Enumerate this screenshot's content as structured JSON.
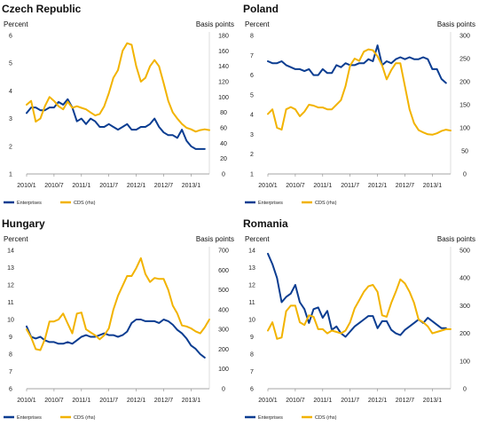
{
  "chart_data": [
    {
      "type": "line",
      "title": "Czech Republic",
      "ylabel_left": "Percent",
      "ylabel_right": "Basis points",
      "x_ticks": [
        "2010/1",
        "2010/7",
        "2011/1",
        "2011/7",
        "2012/1",
        "2012/7",
        "2013/1"
      ],
      "y_left": {
        "min": 1,
        "max": 6,
        "ticks": [
          "1",
          "2",
          "3",
          "4",
          "5",
          "6"
        ]
      },
      "y_right": {
        "min": 0,
        "max": 180,
        "ticks": [
          "0",
          "20",
          "40",
          "60",
          "80",
          "100",
          "120",
          "140",
          "160",
          "180"
        ]
      },
      "series": [
        {
          "name": "Enterprises",
          "axis": "left",
          "color": "#0b3d91",
          "x": [
            0,
            1,
            2,
            3,
            4,
            5,
            6,
            7,
            8,
            9,
            10,
            11,
            12,
            13,
            14,
            15,
            16,
            17,
            18,
            19,
            20,
            21,
            22,
            23,
            24,
            25,
            26,
            27,
            28,
            29,
            30,
            31,
            32,
            33,
            34,
            35,
            36,
            37,
            38,
            39
          ],
          "values": [
            3.2,
            3.4,
            3.4,
            3.3,
            3.3,
            3.4,
            3.4,
            3.6,
            3.5,
            3.7,
            3.4,
            2.9,
            3.0,
            2.8,
            3.0,
            2.9,
            2.7,
            2.7,
            2.8,
            2.7,
            2.6,
            2.7,
            2.8,
            2.6,
            2.6,
            2.7,
            2.7,
            2.8,
            3.0,
            2.7,
            2.5,
            2.4,
            2.4,
            2.3,
            2.6,
            2.2,
            2.0,
            1.9,
            1.9,
            1.9
          ]
        },
        {
          "name": "CDS (rhs)",
          "axis": "right",
          "color": "#f2b300",
          "x": [
            0,
            1,
            2,
            3,
            4,
            5,
            6,
            7,
            8,
            9,
            10,
            11,
            12,
            13,
            14,
            15,
            16,
            17,
            18,
            19,
            20,
            21,
            22,
            23,
            24,
            25,
            26,
            27,
            28,
            29,
            30,
            31,
            32,
            33,
            34,
            35,
            36,
            37,
            38,
            39,
            40
          ],
          "values": [
            90,
            95,
            68,
            72,
            88,
            100,
            95,
            88,
            84,
            94,
            86,
            88,
            86,
            84,
            80,
            76,
            78,
            88,
            105,
            125,
            135,
            160,
            170,
            168,
            140,
            120,
            125,
            140,
            148,
            140,
            118,
            95,
            80,
            72,
            65,
            60,
            58,
            55,
            57,
            58,
            57
          ]
        }
      ]
    },
    {
      "type": "line",
      "title": "Poland",
      "ylabel_left": "Percent",
      "ylabel_right": "Basis points",
      "x_ticks": [
        "2010/1",
        "2010/7",
        "2011/1",
        "2011/7",
        "2012/1",
        "2012/7",
        "2013/1"
      ],
      "y_left": {
        "min": 1,
        "max": 8,
        "ticks": [
          "1",
          "2",
          "3",
          "4",
          "5",
          "6",
          "7",
          "8"
        ]
      },
      "y_right": {
        "min": 0,
        "max": 300,
        "ticks": [
          "0",
          "50",
          "100",
          "150",
          "200",
          "250",
          "300"
        ]
      },
      "series": [
        {
          "name": "Enterprises",
          "axis": "left",
          "color": "#0b3d91",
          "x": [
            0,
            1,
            2,
            3,
            4,
            5,
            6,
            7,
            8,
            9,
            10,
            11,
            12,
            13,
            14,
            15,
            16,
            17,
            18,
            19,
            20,
            21,
            22,
            23,
            24,
            25,
            26,
            27,
            28,
            29,
            30,
            31,
            32,
            33,
            34,
            35,
            36,
            37,
            38,
            39
          ],
          "values": [
            6.7,
            6.6,
            6.6,
            6.7,
            6.5,
            6.4,
            6.3,
            6.3,
            6.2,
            6.3,
            6.0,
            6.0,
            6.3,
            6.1,
            6.1,
            6.5,
            6.4,
            6.6,
            6.5,
            6.5,
            6.6,
            6.6,
            6.8,
            6.7,
            7.5,
            6.5,
            6.7,
            6.6,
            6.8,
            6.9,
            6.8,
            6.9,
            6.8,
            6.8,
            6.9,
            6.8,
            6.3,
            6.3,
            5.8,
            5.6
          ]
        },
        {
          "name": "CDS (rhs)",
          "axis": "right",
          "color": "#f2b300",
          "x": [
            0,
            1,
            2,
            3,
            4,
            5,
            6,
            7,
            8,
            9,
            10,
            11,
            12,
            13,
            14,
            15,
            16,
            17,
            18,
            19,
            20,
            21,
            22,
            23,
            24,
            25,
            26,
            27,
            28,
            29,
            30,
            31,
            32,
            33,
            34,
            35,
            36,
            37,
            38,
            39,
            40
          ],
          "values": [
            130,
            140,
            100,
            96,
            140,
            145,
            140,
            125,
            135,
            150,
            148,
            144,
            144,
            140,
            140,
            150,
            160,
            190,
            235,
            250,
            245,
            265,
            270,
            268,
            255,
            235,
            205,
            225,
            240,
            240,
            190,
            140,
            110,
            95,
            90,
            86,
            85,
            88,
            93,
            96,
            94
          ]
        }
      ]
    },
    {
      "type": "line",
      "title": "Hungary",
      "ylabel_left": "Percent",
      "ylabel_right": "Basis points",
      "x_ticks": [
        "2010/1",
        "2010/7",
        "2011/1",
        "2011/7",
        "2012/1",
        "2012/7",
        "2013/1"
      ],
      "y_left": {
        "min": 6,
        "max": 14,
        "ticks": [
          "6",
          "7",
          "8",
          "9",
          "10",
          "11",
          "12",
          "13",
          "14"
        ]
      },
      "y_right": {
        "min": 0,
        "max": 700,
        "ticks": [
          "0",
          "100",
          "200",
          "300",
          "400",
          "500",
          "600",
          "700"
        ]
      },
      "series": [
        {
          "name": "Enterprises",
          "axis": "left",
          "color": "#0b3d91",
          "x": [
            0,
            1,
            2,
            3,
            4,
            5,
            6,
            7,
            8,
            9,
            10,
            11,
            12,
            13,
            14,
            15,
            16,
            17,
            18,
            19,
            20,
            21,
            22,
            23,
            24,
            25,
            26,
            27,
            28,
            29,
            30,
            31,
            32,
            33,
            34,
            35,
            36,
            37,
            38,
            39
          ],
          "values": [
            9.6,
            9.0,
            8.9,
            9.0,
            8.8,
            8.7,
            8.7,
            8.6,
            8.6,
            8.7,
            8.6,
            8.8,
            9.0,
            9.1,
            9.0,
            9.0,
            9.1,
            9.2,
            9.1,
            9.1,
            9.0,
            9.1,
            9.3,
            9.8,
            10.0,
            10.0,
            9.9,
            9.9,
            9.9,
            9.8,
            10.0,
            9.9,
            9.7,
            9.4,
            9.2,
            8.9,
            8.5,
            8.3,
            8.0,
            7.8
          ]
        },
        {
          "name": "CDS (rhs)",
          "axis": "right",
          "color": "#f2b300",
          "x": [
            0,
            1,
            2,
            3,
            4,
            5,
            6,
            7,
            8,
            9,
            10,
            11,
            12,
            13,
            14,
            15,
            16,
            17,
            18,
            19,
            20,
            21,
            22,
            23,
            24,
            25,
            26,
            27,
            28,
            29,
            30,
            31,
            32,
            33,
            34,
            35,
            36,
            37,
            38,
            39,
            40
          ],
          "values": [
            300,
            260,
            200,
            195,
            250,
            340,
            340,
            350,
            380,
            330,
            280,
            380,
            385,
            300,
            285,
            270,
            250,
            270,
            305,
            400,
            470,
            520,
            570,
            570,
            610,
            660,
            580,
            540,
            560,
            555,
            555,
            500,
            420,
            380,
            320,
            315,
            305,
            290,
            280,
            310,
            350
          ]
        }
      ]
    },
    {
      "type": "line",
      "title": "Romania",
      "ylabel_left": "Percent",
      "ylabel_right": "Basis points",
      "x_ticks": [
        "2010/1",
        "2010/7",
        "2011/1",
        "2011/7",
        "2012/1",
        "2012/7",
        "2013/1"
      ],
      "y_left": {
        "min": 6,
        "max": 14,
        "ticks": [
          "6",
          "7",
          "8",
          "9",
          "10",
          "11",
          "12",
          "13",
          "14"
        ]
      },
      "y_right": {
        "min": 0,
        "max": 500,
        "ticks": [
          "0",
          "100",
          "200",
          "300",
          "400",
          "500"
        ]
      },
      "series": [
        {
          "name": "Enterprises",
          "axis": "left",
          "color": "#0b3d91",
          "x": [
            0,
            1,
            2,
            3,
            4,
            5,
            6,
            7,
            8,
            9,
            10,
            11,
            12,
            13,
            14,
            15,
            16,
            17,
            18,
            19,
            20,
            21,
            22,
            23,
            24,
            25,
            26,
            27,
            28,
            29,
            30,
            31,
            32,
            33,
            34,
            35,
            36,
            37,
            38,
            39
          ],
          "values": [
            13.8,
            13.2,
            12.4,
            11.0,
            11.3,
            11.5,
            12.0,
            11.0,
            10.6,
            9.8,
            10.6,
            10.7,
            10.1,
            10.5,
            9.4,
            9.6,
            9.2,
            9.0,
            9.3,
            9.6,
            9.8,
            10.0,
            10.2,
            10.2,
            9.5,
            9.9,
            9.9,
            9.4,
            9.2,
            9.1,
            9.4,
            9.6,
            9.8,
            10.0,
            9.8,
            10.1,
            9.9,
            9.7,
            9.5,
            9.5
          ]
        },
        {
          "name": "CDS (rhs)",
          "axis": "right",
          "color": "#f2b300",
          "x": [
            0,
            1,
            2,
            3,
            4,
            5,
            6,
            7,
            8,
            9,
            10,
            11,
            12,
            13,
            14,
            15,
            16,
            17,
            18,
            19,
            20,
            21,
            22,
            23,
            24,
            25,
            26,
            27,
            28,
            29,
            30,
            31,
            32,
            33,
            34,
            35,
            36,
            37,
            38,
            39,
            40
          ],
          "values": [
            210,
            240,
            180,
            185,
            280,
            300,
            300,
            240,
            230,
            265,
            260,
            215,
            215,
            200,
            210,
            205,
            200,
            210,
            240,
            290,
            320,
            350,
            370,
            375,
            350,
            265,
            260,
            310,
            350,
            395,
            380,
            350,
            310,
            250,
            240,
            225,
            200,
            205,
            210,
            215,
            215
          ]
        }
      ]
    }
  ],
  "legend": {
    "enterprises": "Enterprises",
    "cds": "CDS (rhs)"
  }
}
